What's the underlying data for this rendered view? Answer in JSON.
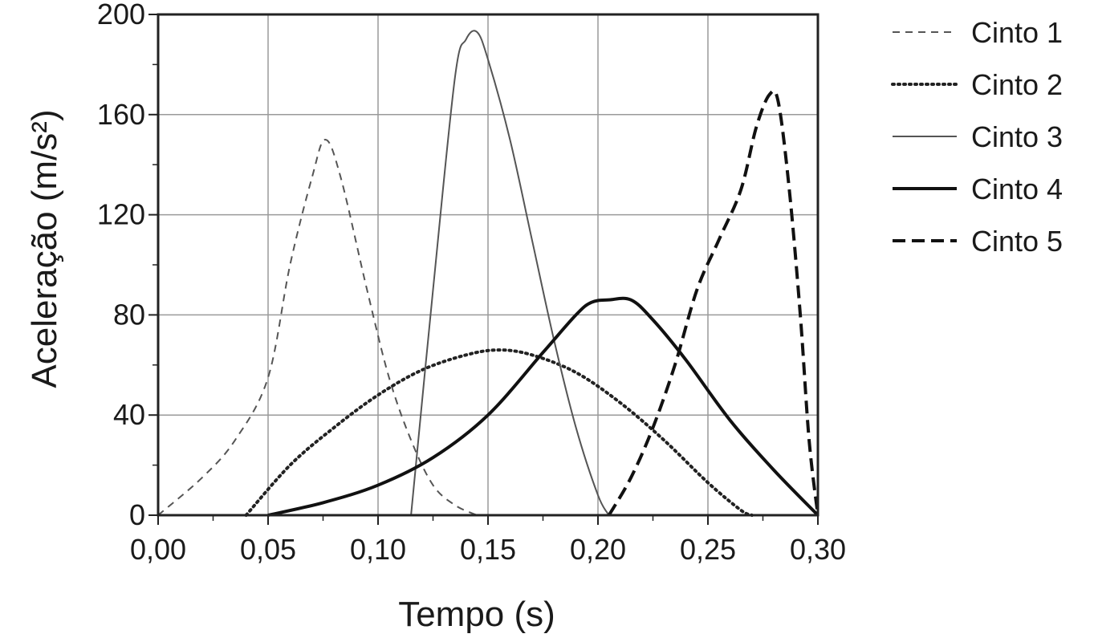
{
  "chart_data": {
    "type": "line",
    "xlabel": "Tempo (s)",
    "ylabel": "Aceleração (m/s²)",
    "xlim": [
      0,
      0.3
    ],
    "ylim": [
      0,
      200
    ],
    "xticks": [
      {
        "v": 0.0,
        "label": "0,00"
      },
      {
        "v": 0.05,
        "label": "0,05"
      },
      {
        "v": 0.1,
        "label": "0,10"
      },
      {
        "v": 0.15,
        "label": "0,15"
      },
      {
        "v": 0.2,
        "label": "0,20"
      },
      {
        "v": 0.25,
        "label": "0,25"
      },
      {
        "v": 0.3,
        "label": "0,30"
      }
    ],
    "yticks": [
      {
        "v": 0,
        "label": "0"
      },
      {
        "v": 40,
        "label": "40"
      },
      {
        "v": 80,
        "label": "80"
      },
      {
        "v": 120,
        "label": "120"
      },
      {
        "v": 160,
        "label": "160"
      },
      {
        "v": 200,
        "label": "200"
      }
    ],
    "grid": true,
    "legend_position": "outside-right",
    "series": [
      {
        "name": "Cinto 1",
        "style": "dash-short",
        "color": "#555555",
        "width": 2,
        "x": [
          0.0,
          0.02,
          0.035,
          0.05,
          0.06,
          0.07,
          0.076,
          0.083,
          0.095,
          0.105,
          0.115,
          0.125,
          0.135,
          0.145
        ],
        "y": [
          0,
          15,
          30,
          55,
          100,
          135,
          150,
          135,
          90,
          55,
          30,
          12,
          4,
          0
        ]
      },
      {
        "name": "Cinto 2",
        "style": "dotted",
        "color": "#222222",
        "width": 4,
        "x": [
          0.04,
          0.06,
          0.08,
          0.1,
          0.12,
          0.14,
          0.155,
          0.17,
          0.19,
          0.21,
          0.23,
          0.25,
          0.265,
          0.27
        ],
        "y": [
          0,
          20,
          35,
          48,
          58,
          64,
          66,
          64,
          57,
          45,
          30,
          13,
          2,
          0
        ]
      },
      {
        "name": "Cinto 3",
        "style": "solid",
        "color": "#555555",
        "width": 2,
        "x": [
          0.115,
          0.125,
          0.135,
          0.14,
          0.145,
          0.15,
          0.16,
          0.17,
          0.18,
          0.19,
          0.2,
          0.205
        ],
        "y": [
          0,
          90,
          175,
          190,
          193,
          182,
          150,
          110,
          70,
          35,
          8,
          0
        ]
      },
      {
        "name": "Cinto 4",
        "style": "solid",
        "color": "#111111",
        "width": 4,
        "x": [
          0.05,
          0.075,
          0.1,
          0.125,
          0.15,
          0.175,
          0.19,
          0.197,
          0.205,
          0.215,
          0.225,
          0.24,
          0.26,
          0.28,
          0.3
        ],
        "y": [
          0,
          5,
          12,
          23,
          40,
          65,
          80,
          85,
          86,
          86,
          78,
          62,
          38,
          18,
          0
        ]
      },
      {
        "name": "Cinto 5",
        "style": "dash-long",
        "color": "#111111",
        "width": 4,
        "x": [
          0.205,
          0.215,
          0.225,
          0.235,
          0.245,
          0.255,
          0.265,
          0.272,
          0.278,
          0.282,
          0.287,
          0.292,
          0.296,
          0.3
        ],
        "y": [
          0,
          15,
          35,
          60,
          90,
          110,
          130,
          155,
          168,
          165,
          130,
          80,
          30,
          0
        ]
      }
    ]
  }
}
